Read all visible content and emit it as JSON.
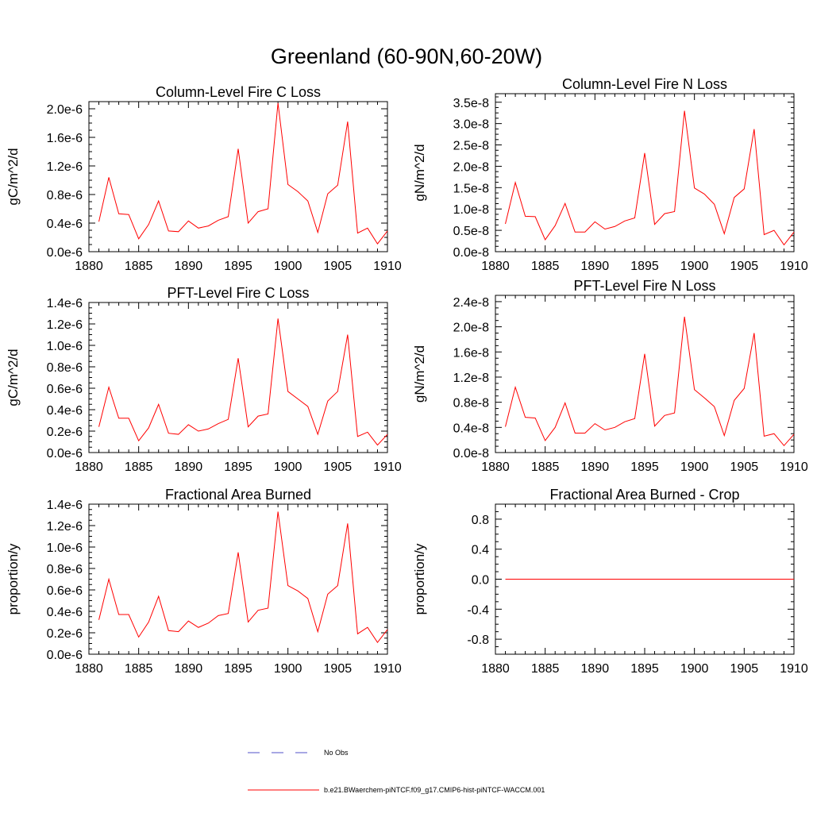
{
  "figure": {
    "title": "Greenland (60-90N,60-20W)"
  },
  "legend": {
    "items": [
      {
        "label": "No Obs",
        "color": "#5050c8",
        "style": "dashed"
      },
      {
        "label": "b.e21.BWaerchem-piNTCF.f09_g17.CMIP6-hist-piNTCF-WACCM.001",
        "color": "#ff0000",
        "style": "solid"
      }
    ]
  },
  "chart_data": [
    {
      "type": "line",
      "title": "Column-Level Fire C Loss",
      "ylabel": "gC/m^2/d",
      "xlim": [
        1880,
        1910
      ],
      "ylim": [
        0,
        2.1e-06
      ],
      "xticks": [
        1880,
        1885,
        1890,
        1895,
        1900,
        1905,
        1910
      ],
      "yticks": [
        0,
        4e-07,
        8e-07,
        1.2e-06,
        1.6e-06,
        2e-06
      ],
      "ytick_labels": [
        "0.0e-6",
        "0.4e-6",
        "0.8e-6",
        "1.2e-6",
        "1.6e-6",
        "2.0e-6"
      ],
      "x": [
        1881,
        1882,
        1883,
        1884,
        1885,
        1886,
        1887,
        1888,
        1889,
        1890,
        1891,
        1892,
        1893,
        1894,
        1895,
        1896,
        1897,
        1898,
        1899,
        1900,
        1901,
        1902,
        1903,
        1904,
        1905,
        1906,
        1907,
        1908,
        1909,
        1910
      ],
      "series": [
        {
          "color": "#ff0000",
          "values": [
            4.2e-07,
            1.04e-06,
            5.3e-07,
            5.2e-07,
            1.8e-07,
            3.8e-07,
            7.1e-07,
            2.9e-07,
            2.8e-07,
            4.3e-07,
            3.3e-07,
            3.6e-07,
            4.4e-07,
            4.9e-07,
            1.44e-06,
            4e-07,
            5.6e-07,
            6e-07,
            2.08e-06,
            9.4e-07,
            8.4e-07,
            7.1e-07,
            2.7e-07,
            8.1e-07,
            9.3e-07,
            1.82e-06,
            2.6e-07,
            3.3e-07,
            1.1e-07,
            2.9e-07
          ]
        }
      ]
    },
    {
      "type": "line",
      "title": "Column-Level Fire N Loss",
      "ylabel": "gN/m^2/d",
      "xlim": [
        1880,
        1910
      ],
      "ylim": [
        0,
        3.7e-08
      ],
      "xticks": [
        1880,
        1885,
        1890,
        1895,
        1900,
        1905,
        1910
      ],
      "yticks": [
        0,
        5e-09,
        1e-08,
        1.5e-08,
        2e-08,
        2.5e-08,
        3e-08,
        3.5e-08
      ],
      "ytick_labels": [
        "0.0e-8",
        "0.5e-8",
        "1.0e-8",
        "1.5e-8",
        "2.0e-8",
        "2.5e-8",
        "3.0e-8",
        "3.5e-8"
      ],
      "x": [
        1881,
        1882,
        1883,
        1884,
        1885,
        1886,
        1887,
        1888,
        1889,
        1890,
        1891,
        1892,
        1893,
        1894,
        1895,
        1896,
        1897,
        1898,
        1899,
        1900,
        1901,
        1902,
        1903,
        1904,
        1905,
        1906,
        1907,
        1908,
        1909,
        1910
      ],
      "series": [
        {
          "color": "#ff0000",
          "values": [
            6.5e-09,
            1.62e-08,
            8.3e-09,
            8.2e-09,
            2.8e-09,
            6.1e-09,
            1.13e-08,
            4.6e-09,
            4.6e-09,
            7e-09,
            5.3e-09,
            5.9e-09,
            7.2e-09,
            7.9e-09,
            2.31e-08,
            6.4e-09,
            8.9e-09,
            9.4e-09,
            3.3e-08,
            1.49e-08,
            1.35e-08,
            1.11e-08,
            4.2e-09,
            1.27e-08,
            1.47e-08,
            2.87e-08,
            4e-09,
            5e-09,
            1.6e-09,
            4.6e-09
          ]
        }
      ]
    },
    {
      "type": "line",
      "title": "PFT-Level Fire C Loss",
      "ylabel": "gC/m^2/d",
      "xlim": [
        1880,
        1910
      ],
      "ylim": [
        0,
        1.4e-06
      ],
      "xticks": [
        1880,
        1885,
        1890,
        1895,
        1900,
        1905,
        1910
      ],
      "yticks": [
        0,
        2e-07,
        4e-07,
        6e-07,
        8e-07,
        1e-06,
        1.2e-06,
        1.4e-06
      ],
      "ytick_labels": [
        "0.0e-6",
        "0.2e-6",
        "0.4e-6",
        "0.6e-6",
        "0.8e-6",
        "1.0e-6",
        "1.2e-6",
        "1.4e-6"
      ],
      "x": [
        1881,
        1882,
        1883,
        1884,
        1885,
        1886,
        1887,
        1888,
        1889,
        1890,
        1891,
        1892,
        1893,
        1894,
        1895,
        1896,
        1897,
        1898,
        1899,
        1900,
        1901,
        1902,
        1903,
        1904,
        1905,
        1906,
        1907,
        1908,
        1909,
        1910
      ],
      "series": [
        {
          "color": "#ff0000",
          "values": [
            2.4e-07,
            6.1e-07,
            3.2e-07,
            3.2e-07,
            1.1e-07,
            2.3e-07,
            4.5e-07,
            1.8e-07,
            1.7e-07,
            2.6e-07,
            2e-07,
            2.2e-07,
            2.7e-07,
            3.1e-07,
            8.8e-07,
            2.4e-07,
            3.4e-07,
            3.6e-07,
            1.25e-06,
            5.7e-07,
            5e-07,
            4.3e-07,
            1.7e-07,
            4.8e-07,
            5.7e-07,
            1.1e-06,
            1.5e-07,
            1.9e-07,
            7e-08,
            1.7e-07
          ]
        }
      ]
    },
    {
      "type": "line",
      "title": "PFT-Level Fire N Loss",
      "ylabel": "gN/m^2/d",
      "xlim": [
        1880,
        1910
      ],
      "ylim": [
        0,
        2.5e-08
      ],
      "xticks": [
        1880,
        1885,
        1890,
        1895,
        1900,
        1905,
        1910
      ],
      "yticks": [
        0,
        4e-09,
        8e-09,
        1.2e-08,
        1.6e-08,
        2e-08,
        2.4e-08
      ],
      "ytick_labels": [
        "0.0e-8",
        "0.4e-8",
        "0.8e-8",
        "1.2e-8",
        "1.6e-8",
        "2.0e-8",
        "2.4e-8"
      ],
      "x": [
        1881,
        1882,
        1883,
        1884,
        1885,
        1886,
        1887,
        1888,
        1889,
        1890,
        1891,
        1892,
        1893,
        1894,
        1895,
        1896,
        1897,
        1898,
        1899,
        1900,
        1901,
        1902,
        1903,
        1904,
        1905,
        1906,
        1907,
        1908,
        1909,
        1910
      ],
      "series": [
        {
          "color": "#ff0000",
          "values": [
            4.1e-09,
            1.04e-08,
            5.6e-09,
            5.5e-09,
            1.9e-09,
            4e-09,
            7.9e-09,
            3.1e-09,
            3.1e-09,
            4.6e-09,
            3.6e-09,
            4e-09,
            4.9e-09,
            5.4e-09,
            1.57e-08,
            4.2e-09,
            5.9e-09,
            6.3e-09,
            2.16e-08,
            1e-08,
            8.7e-09,
            7.3e-09,
            2.7e-09,
            8.3e-09,
            1.02e-08,
            1.9e-08,
            2.6e-09,
            3e-09,
            1.1e-09,
            2.9e-09
          ]
        }
      ]
    },
    {
      "type": "line",
      "title": "Fractional Area Burned",
      "ylabel": "proportion/y",
      "xlim": [
        1880,
        1910
      ],
      "ylim": [
        0,
        1.4e-06
      ],
      "xticks": [
        1880,
        1885,
        1890,
        1895,
        1900,
        1905,
        1910
      ],
      "yticks": [
        0,
        2e-07,
        4e-07,
        6e-07,
        8e-07,
        1e-06,
        1.2e-06,
        1.4e-06
      ],
      "ytick_labels": [
        "0.0e-6",
        "0.2e-6",
        "0.4e-6",
        "0.6e-6",
        "0.8e-6",
        "1.0e-6",
        "1.2e-6",
        "1.4e-6"
      ],
      "x": [
        1881,
        1882,
        1883,
        1884,
        1885,
        1886,
        1887,
        1888,
        1889,
        1890,
        1891,
        1892,
        1893,
        1894,
        1895,
        1896,
        1897,
        1898,
        1899,
        1900,
        1901,
        1902,
        1903,
        1904,
        1905,
        1906,
        1907,
        1908,
        1909,
        1910
      ],
      "series": [
        {
          "color": "#ff0000",
          "values": [
            3.2e-07,
            7e-07,
            3.7e-07,
            3.7e-07,
            1.6e-07,
            3e-07,
            5.4e-07,
            2.2e-07,
            2.1e-07,
            3.1e-07,
            2.5e-07,
            2.9e-07,
            3.6e-07,
            3.8e-07,
            9.5e-07,
            3e-07,
            4.1e-07,
            4.3e-07,
            1.33e-06,
            6.4e-07,
            5.9e-07,
            5.2e-07,
            2.1e-07,
            5.6e-07,
            6.4e-07,
            1.22e-06,
            1.9e-07,
            2.5e-07,
            1.1e-07,
            2.3e-07
          ]
        }
      ]
    },
    {
      "type": "line",
      "title": "Fractional Area Burned - Crop",
      "ylabel": "proportion/y",
      "xlim": [
        1880,
        1910
      ],
      "ylim": [
        -1.0,
        1.0
      ],
      "xticks": [
        1880,
        1885,
        1890,
        1895,
        1900,
        1905,
        1910
      ],
      "yticks": [
        -0.8,
        -0.4,
        0,
        0.4,
        0.8
      ],
      "ytick_labels": [
        "-0.8",
        "-0.4",
        "0.0",
        "0.4",
        "0.8"
      ],
      "x": [
        1881,
        1882,
        1883,
        1884,
        1885,
        1886,
        1887,
        1888,
        1889,
        1890,
        1891,
        1892,
        1893,
        1894,
        1895,
        1896,
        1897,
        1898,
        1899,
        1900,
        1901,
        1902,
        1903,
        1904,
        1905,
        1906,
        1907,
        1908,
        1909,
        1910
      ],
      "series": [
        {
          "color": "#ff0000",
          "values": [
            0,
            0,
            0,
            0,
            0,
            0,
            0,
            0,
            0,
            0,
            0,
            0,
            0,
            0,
            0,
            0,
            0,
            0,
            0,
            0,
            0,
            0,
            0,
            0,
            0,
            0,
            0,
            0,
            0,
            0
          ]
        }
      ]
    }
  ]
}
